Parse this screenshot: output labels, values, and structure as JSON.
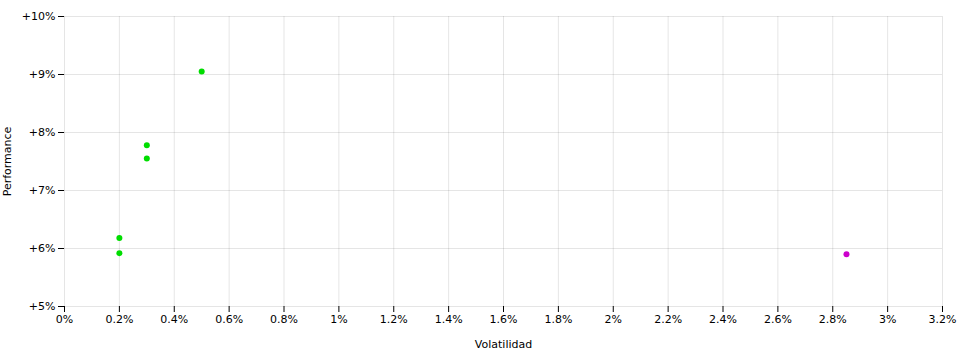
{
  "chart_data": {
    "type": "scatter",
    "xlabel": "Volatilidad",
    "ylabel": "Performance",
    "xlim": [
      0,
      0.032
    ],
    "ylim": [
      0.05,
      0.1
    ],
    "xticks": [
      {
        "value": 0,
        "label": "0%"
      },
      {
        "value": 0.002,
        "label": "0.2%"
      },
      {
        "value": 0.004,
        "label": "0.4%"
      },
      {
        "value": 0.006,
        "label": "0.6%"
      },
      {
        "value": 0.008,
        "label": "0.8%"
      },
      {
        "value": 0.01,
        "label": "1%"
      },
      {
        "value": 0.012,
        "label": "1.2%"
      },
      {
        "value": 0.014,
        "label": "1.4%"
      },
      {
        "value": 0.016,
        "label": "1.6%"
      },
      {
        "value": 0.018,
        "label": "1.8%"
      },
      {
        "value": 0.02,
        "label": "2%"
      },
      {
        "value": 0.022,
        "label": "2.2%"
      },
      {
        "value": 0.024,
        "label": "2.4%"
      },
      {
        "value": 0.026,
        "label": "2.6%"
      },
      {
        "value": 0.028,
        "label": "2.8%"
      },
      {
        "value": 0.03,
        "label": "3%"
      },
      {
        "value": 0.032,
        "label": "3.2%"
      }
    ],
    "yticks": [
      {
        "value": 0.05,
        "label": "+5%"
      },
      {
        "value": 0.06,
        "label": "+6%"
      },
      {
        "value": 0.07,
        "label": "+7%"
      },
      {
        "value": 0.08,
        "label": "+8%"
      },
      {
        "value": 0.09,
        "label": "+9%"
      },
      {
        "value": 0.1,
        "label": "+10%"
      }
    ],
    "grid": true,
    "series": [
      {
        "color": "#00dd00",
        "x": [
          0.002,
          0.002,
          0.003,
          0.003,
          0.005
        ],
        "y": [
          0.0592,
          0.0618,
          0.0778,
          0.0755,
          0.0905
        ]
      },
      {
        "color": "#cc00cc",
        "x": [
          0.0285
        ],
        "y": [
          0.059
        ]
      }
    ]
  }
}
